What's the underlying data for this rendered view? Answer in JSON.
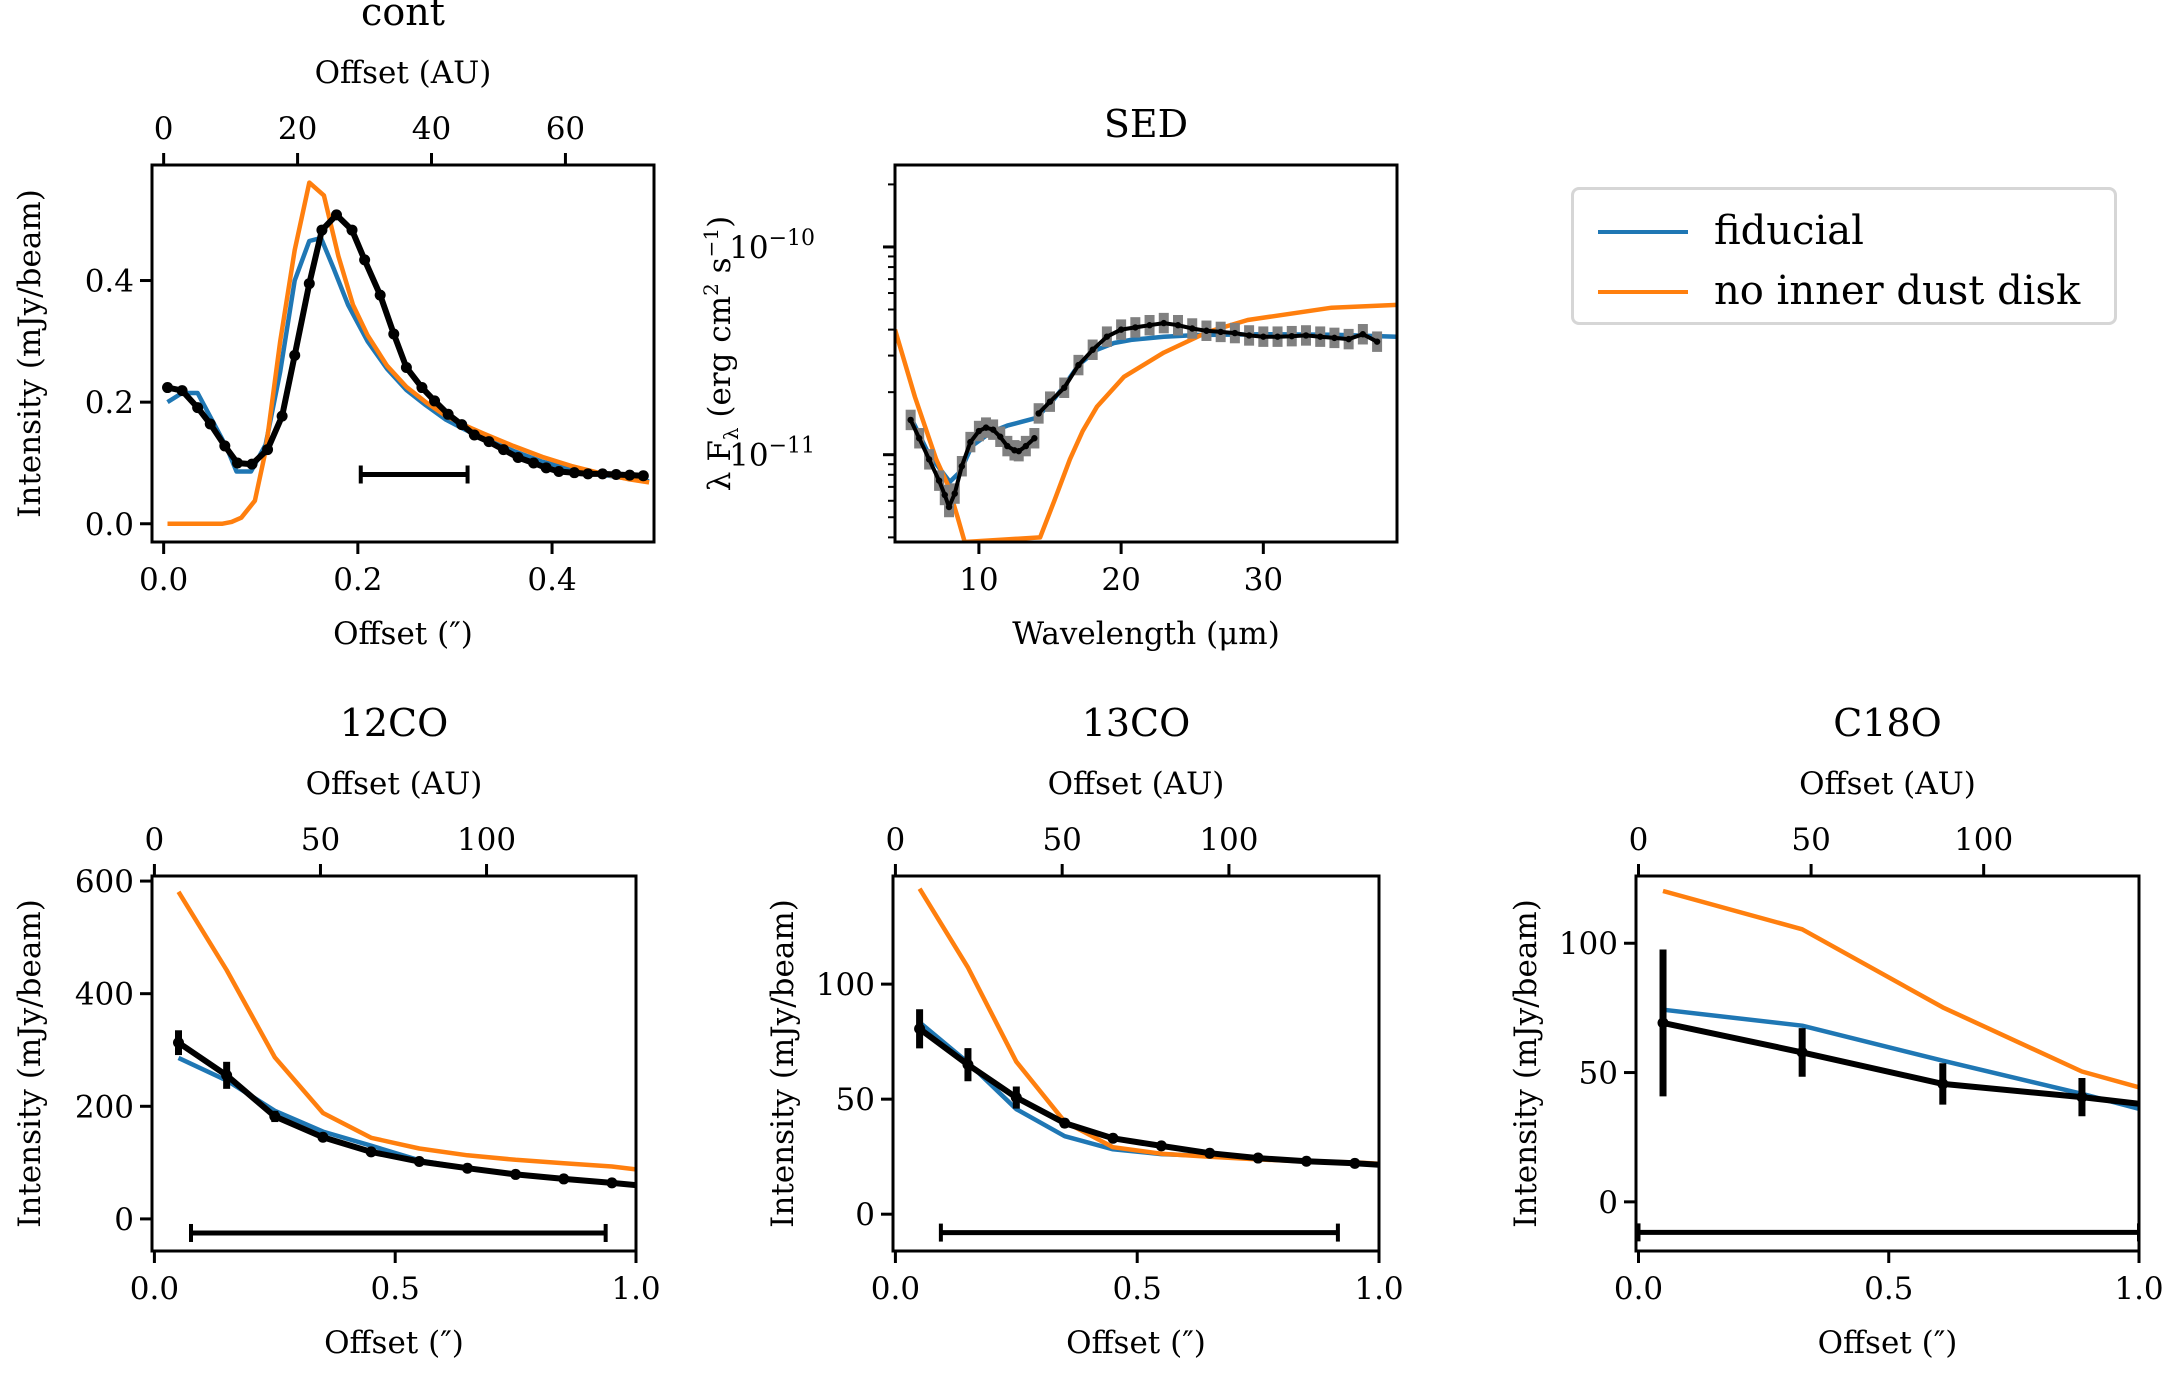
{
  "figure": {
    "colors": {
      "fiducial": "#1f77b4",
      "no_inner_dust_disk": "#ff7f0e",
      "observed": "#000000",
      "observed_error": "#808080",
      "legend_border": "#d6d6d6"
    },
    "legend": {
      "placement": "top-right",
      "items": [
        {
          "label": "fiducial",
          "color_key": "fiducial"
        },
        {
          "label": "no inner dust disk",
          "color_key": "no_inner_dust_disk"
        }
      ]
    }
  },
  "chart_data": [
    {
      "id": "cont",
      "type": "line",
      "title": "cont",
      "xlabel": "Offset (″)",
      "ylabel": "Intensity (mJy/beam)",
      "top_xlabel": "Offset (AU)",
      "xlim": [
        -0.012,
        0.505
      ],
      "ylim": [
        -0.03,
        0.59
      ],
      "xticks": [
        0.0,
        0.2,
        0.4
      ],
      "xtick_labels": [
        "0.0",
        "0.2",
        "0.4"
      ],
      "yticks": [
        0.0,
        0.2,
        0.4
      ],
      "ytick_labels": [
        "0.0",
        "0.2",
        "0.4"
      ],
      "top_xticks_au": [
        0,
        20,
        40,
        60
      ],
      "top_xtick_labels": [
        "0",
        "20",
        "40",
        "60"
      ],
      "au_per_arcsec": 145,
      "grid": false,
      "series": [
        {
          "name": "fiducial",
          "color_key": "fiducial",
          "x": [
            0.004,
            0.019,
            0.035,
            0.05,
            0.065,
            0.075,
            0.09,
            0.105,
            0.12,
            0.135,
            0.15,
            0.162,
            0.175,
            0.19,
            0.21,
            0.23,
            0.25,
            0.27,
            0.29,
            0.31,
            0.33,
            0.36,
            0.39,
            0.42,
            0.45,
            0.48,
            0.5
          ],
          "y": [
            0.2,
            0.215,
            0.215,
            0.17,
            0.125,
            0.086,
            0.086,
            0.13,
            0.25,
            0.4,
            0.465,
            0.47,
            0.42,
            0.36,
            0.3,
            0.255,
            0.22,
            0.195,
            0.172,
            0.155,
            0.14,
            0.12,
            0.102,
            0.09,
            0.081,
            0.074,
            0.07
          ]
        },
        {
          "name": "no inner dust disk",
          "color_key": "no_inner_dust_disk",
          "x": [
            0.004,
            0.02,
            0.04,
            0.06,
            0.07,
            0.08,
            0.094,
            0.105,
            0.12,
            0.135,
            0.15,
            0.165,
            0.18,
            0.195,
            0.21,
            0.23,
            0.25,
            0.27,
            0.29,
            0.31,
            0.33,
            0.36,
            0.39,
            0.42,
            0.45,
            0.48,
            0.5
          ],
          "y": [
            0.0,
            0.0,
            0.0,
            0.0,
            0.003,
            0.01,
            0.038,
            0.12,
            0.3,
            0.45,
            0.561,
            0.54,
            0.44,
            0.36,
            0.31,
            0.26,
            0.225,
            0.2,
            0.178,
            0.162,
            0.148,
            0.128,
            0.11,
            0.095,
            0.083,
            0.073,
            0.068
          ]
        },
        {
          "name": "observed",
          "color_key": "observed",
          "markers": true,
          "x": [
            0.004,
            0.019,
            0.035,
            0.048,
            0.063,
            0.076,
            0.091,
            0.107,
            0.122,
            0.135,
            0.15,
            0.163,
            0.178,
            0.194,
            0.207,
            0.223,
            0.237,
            0.25,
            0.266,
            0.279,
            0.293,
            0.307,
            0.32,
            0.335,
            0.35,
            0.365,
            0.381,
            0.394,
            0.407,
            0.423,
            0.437,
            0.452,
            0.466,
            0.48,
            0.494
          ],
          "y": [
            0.224,
            0.219,
            0.191,
            0.164,
            0.128,
            0.1,
            0.098,
            0.122,
            0.177,
            0.277,
            0.395,
            0.483,
            0.508,
            0.483,
            0.434,
            0.376,
            0.312,
            0.257,
            0.224,
            0.202,
            0.18,
            0.163,
            0.146,
            0.135,
            0.122,
            0.109,
            0.1,
            0.092,
            0.086,
            0.084,
            0.082,
            0.082,
            0.081,
            0.08,
            0.079
          ]
        }
      ],
      "beam_bar": {
        "x_start": 0.203,
        "x_end": 0.313,
        "y": 0.081
      }
    },
    {
      "id": "sed",
      "type": "line",
      "title": "SED",
      "xlabel": "Wavelength (μm)",
      "ylabel": "λ F_λ (erg cm^2 s^-1)",
      "yscale": "log",
      "xlim": [
        4.1,
        39.4
      ],
      "ylim": [
        3.8e-12,
        2.48e-10
      ],
      "xticks": [
        10,
        20,
        30
      ],
      "xtick_labels": [
        "10",
        "20",
        "30"
      ],
      "yticks": [
        1e-11,
        1e-10
      ],
      "ytick_labels": [
        "10^-11",
        "10^-10"
      ],
      "grid": false,
      "series": [
        {
          "name": "fiducial",
          "color_key": "fiducial",
          "x": [
            5.3,
            6.5,
            7.95,
            8.7,
            9.5,
            10.9,
            12.0,
            13.0,
            14.0,
            15.0,
            15.9,
            17.0,
            18.3,
            19.5,
            20.7,
            23.0,
            25.4,
            30.0,
            35.0,
            39.4
          ],
          "y": [
            1.47e-11,
            1e-11,
            7.4e-12,
            8.3e-12,
            1.1e-11,
            1.29e-11,
            1.38e-11,
            1.44e-11,
            1.5e-11,
            1.75e-11,
            2.1e-11,
            2.7e-11,
            3.2e-11,
            3.45e-11,
            3.57e-11,
            3.7e-11,
            3.77e-11,
            3.8e-11,
            3.78e-11,
            3.7e-11
          ]
        },
        {
          "name": "no inner dust disk",
          "color_key": "no_inner_dust_disk",
          "x": [
            4.1,
            5.5,
            7.0,
            7.8,
            8.5,
            9.0,
            14.3,
            15.3,
            16.4,
            17.3,
            18.3,
            20.2,
            23.0,
            26.1,
            28.9,
            34.8,
            39.4
          ],
          "y": [
            4e-11,
            1.9e-11,
            9.5e-12,
            7.2e-12,
            5e-12,
            3.8e-12,
            4e-12,
            6e-12,
            9.5e-12,
            1.3e-11,
            1.7e-11,
            2.37e-11,
            3.1e-11,
            3.9e-11,
            4.45e-11,
            5.1e-11,
            5.26e-11
          ]
        },
        {
          "name": "observed",
          "color_key": "observed",
          "markers": true,
          "error_color_key": "observed_error",
          "segments": [
            {
              "x": [
                5.2,
                5.8,
                6.5,
                7.2,
                7.6,
                7.9,
                8.3,
                8.8,
                9.4,
                10.0,
                10.5,
                11.0,
                11.5,
                12.0,
                12.5,
                12.8,
                13.3,
                13.9
              ],
              "y": [
                1.47e-11,
                1.2e-11,
                9.5e-12,
                7.5e-12,
                6.4e-12,
                5.6e-12,
                6.5e-12,
                8.8e-12,
                1.15e-11,
                1.3e-11,
                1.35e-11,
                1.32e-11,
                1.22e-11,
                1.1e-11,
                1.05e-11,
                1.04e-11,
                1.1e-11,
                1.2e-11
              ]
            },
            {
              "x": [
                14.2,
                15.0,
                16.0,
                17.0,
                18.0,
                19.0,
                20.0,
                21.0,
                22.0,
                23.0,
                24.0,
                25.0,
                26.0,
                27.0,
                28.0,
                29.0,
                30.0,
                31.0,
                32.0,
                33.0,
                34.0,
                35.0,
                36.0,
                37.0,
                38.0
              ],
              "y": [
                1.58e-11,
                1.8e-11,
                2.1e-11,
                2.7e-11,
                3.2e-11,
                3.7e-11,
                4e-11,
                4.1e-11,
                4.2e-11,
                4.3e-11,
                4.2e-11,
                4.05e-11,
                3.95e-11,
                3.9e-11,
                3.85e-11,
                3.75e-11,
                3.7e-11,
                3.7e-11,
                3.72e-11,
                3.75e-11,
                3.7e-11,
                3.65e-11,
                3.6e-11,
                3.8e-11,
                3.5e-11
              ]
            }
          ]
        }
      ]
    },
    {
      "id": "12co",
      "type": "line",
      "title": "12CO",
      "xlabel": "Offset (″)",
      "ylabel": "Intensity (mJy/beam)",
      "top_xlabel": "Offset (AU)",
      "xlim": [
        -0.005,
        1.0
      ],
      "ylim": [
        -57,
        609
      ],
      "xticks": [
        0.0,
        0.5,
        1.0
      ],
      "xtick_labels": [
        "0.0",
        "0.5",
        "1.0"
      ],
      "yticks": [
        0,
        200,
        400,
        600
      ],
      "ytick_labels": [
        "0",
        "200",
        "400",
        "600"
      ],
      "top_xticks_au": [
        0,
        50,
        100
      ],
      "top_xtick_labels": [
        "0",
        "50",
        "100"
      ],
      "au_per_arcsec": 145,
      "grid": false,
      "series": [
        {
          "name": "fiducial",
          "color_key": "fiducial",
          "x": [
            0.05,
            0.15,
            0.25,
            0.35,
            0.45,
            0.55,
            0.65,
            0.75,
            0.85,
            0.95,
            1.0
          ],
          "y": [
            286,
            246,
            192,
            155,
            130,
            104,
            90,
            79,
            71,
            64,
            60
          ]
        },
        {
          "name": "no inner dust disk",
          "color_key": "no_inner_dust_disk",
          "x": [
            0.05,
            0.15,
            0.25,
            0.35,
            0.45,
            0.55,
            0.65,
            0.75,
            0.85,
            0.95,
            1.0
          ],
          "y": [
            581,
            442,
            287,
            188,
            144,
            125,
            113,
            105,
            99,
            93,
            88
          ]
        },
        {
          "name": "observed",
          "color_key": "observed",
          "markers": true,
          "x": [
            0.05,
            0.15,
            0.25,
            0.35,
            0.45,
            0.55,
            0.65,
            0.75,
            0.85,
            0.95,
            1.0
          ],
          "y": [
            313,
            255,
            182,
            145,
            119,
            102,
            90,
            79,
            71,
            64,
            60
          ],
          "yerr": [
            22,
            24,
            10,
            4,
            3,
            3,
            3,
            3,
            3,
            3,
            0
          ]
        }
      ],
      "beam_bar": {
        "x_start": 0.076,
        "x_end": 0.937,
        "y": -25
      }
    },
    {
      "id": "13co",
      "type": "line",
      "title": "13CO",
      "xlabel": "Offset (″)",
      "ylabel": "Intensity (mJy/beam)",
      "top_xlabel": "Offset (AU)",
      "xlim": [
        -0.005,
        1.0
      ],
      "ylim": [
        -16,
        147
      ],
      "xticks": [
        0.0,
        0.5,
        1.0
      ],
      "xtick_labels": [
        "0.0",
        "0.5",
        "1.0"
      ],
      "yticks": [
        0,
        50,
        100
      ],
      "ytick_labels": [
        "0",
        "50",
        "100"
      ],
      "top_xticks_au": [
        0,
        50,
        100
      ],
      "top_xtick_labels": [
        "0",
        "50",
        "100"
      ],
      "au_per_arcsec": 145,
      "grid": false,
      "series": [
        {
          "name": "fiducial",
          "color_key": "fiducial",
          "x": [
            0.05,
            0.15,
            0.25,
            0.35,
            0.45,
            0.55,
            0.65,
            0.75,
            0.85,
            0.95,
            1.0
          ],
          "y": [
            83.4,
            65.9,
            45.7,
            33.9,
            28.2,
            26.1,
            25.3,
            24.0,
            23.0,
            22.3,
            21.7
          ]
        },
        {
          "name": "no inner dust disk",
          "color_key": "no_inner_dust_disk",
          "x": [
            0.05,
            0.15,
            0.25,
            0.35,
            0.45,
            0.55,
            0.65,
            0.75,
            0.85,
            0.95,
            1.0
          ],
          "y": [
            141.5,
            107.2,
            66.3,
            40.2,
            29.1,
            26.3,
            25.0,
            23.8,
            22.9,
            22.5,
            21.9
          ]
        },
        {
          "name": "observed",
          "color_key": "observed",
          "markers": true,
          "x": [
            0.05,
            0.15,
            0.25,
            0.35,
            0.45,
            0.55,
            0.65,
            0.75,
            0.85,
            0.95,
            1.0
          ],
          "y": [
            80.6,
            65.0,
            50.7,
            39.6,
            33.0,
            29.7,
            26.5,
            24.4,
            23.0,
            22.1,
            21.5
          ],
          "yerr": [
            8.5,
            7.2,
            4.8,
            2.0,
            1.2,
            1.0,
            1.0,
            1.0,
            1.0,
            1.0,
            0
          ]
        }
      ],
      "beam_bar": {
        "x_start": 0.094,
        "x_end": 0.915,
        "y": -8
      }
    },
    {
      "id": "c18o",
      "type": "line",
      "title": "C18O",
      "xlabel": "Offset (″)",
      "ylabel": "Intensity (mJy/beam)",
      "top_xlabel": "Offset (AU)",
      "xlim": [
        -0.005,
        1.0
      ],
      "ylim": [
        -19,
        126
      ],
      "xticks": [
        0.0,
        0.5,
        1.0
      ],
      "xtick_labels": [
        "0.0",
        "0.5",
        "1.0"
      ],
      "yticks": [
        0,
        50,
        100
      ],
      "ytick_labels": [
        "0",
        "50",
        "100"
      ],
      "top_xticks_au": [
        0,
        50,
        100
      ],
      "top_xtick_labels": [
        "0",
        "50",
        "100"
      ],
      "au_per_arcsec": 145,
      "grid": false,
      "series": [
        {
          "name": "fiducial",
          "color_key": "fiducial",
          "x": [
            0.049,
            0.327,
            0.608,
            0.886,
            1.0
          ],
          "y": [
            74.3,
            68.1,
            54.6,
            41.8,
            36.0
          ]
        },
        {
          "name": "no inner dust disk",
          "color_key": "no_inner_dust_disk",
          "x": [
            0.049,
            0.327,
            0.608,
            0.886,
            1.0
          ],
          "y": [
            120.2,
            105.4,
            75.2,
            50.4,
            44.3
          ]
        },
        {
          "name": "observed",
          "color_key": "observed",
          "markers": true,
          "x": [
            0.049,
            0.327,
            0.608,
            0.886,
            1.0
          ],
          "y": [
            69.2,
            57.8,
            45.6,
            40.5,
            37.9
          ],
          "yerr": [
            28.4,
            9.4,
            8.0,
            7.4,
            0
          ]
        }
      ],
      "beam_bar": {
        "x_start": 0.0,
        "x_end": 1.0,
        "y": -11.8
      }
    }
  ]
}
